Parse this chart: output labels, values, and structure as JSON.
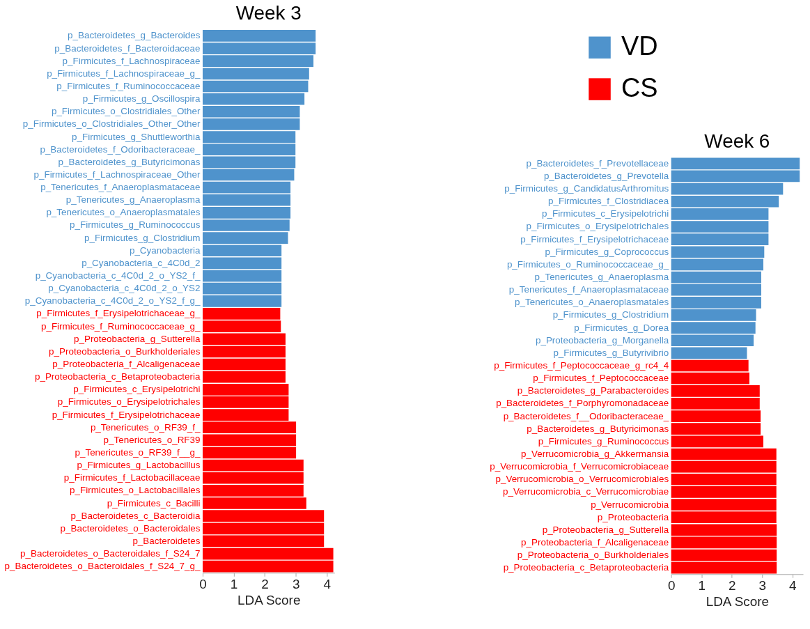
{
  "chart_data": [
    {
      "type": "bar",
      "orientation": "horizontal",
      "title": "Week 3",
      "xlabel": "LDA Score",
      "categories": [
        "p_Bacteroidetes_g_Bacteroides",
        "p_Bacteroidetes_f_Bacteroidaceae",
        "p_Firmicutes_f_Lachnospiraceae",
        "p_Firmicutes_f_Lachnospiraceae_g_",
        "p_Firmicutes_f_Ruminococcaceae",
        "p_Firmicutes_g_Oscillospira",
        "p_Firmicutes_o_Clostridiales_Other",
        "p_Firmicutes_o_Clostridiales_Other_Other",
        "p_Firmicutes_g_Shuttleworthia",
        "p_Bacteroidetes_f_Odoribacteraceae_",
        "p_Bacteroidetes_g_Butyricimonas",
        "p_Firmicutes_f_Lachnospiraceae_Other",
        "p_Tenericutes_f_Anaeroplasmataceae",
        "p_Tenericutes_g_Anaeroplasma",
        "p_Tenericutes_o_Anaeroplasmatales",
        "p_Firmicutes_g_Ruminococcus",
        "p_Firmicutes_g_Clostridium",
        "p_Cyanobacteria",
        "p_Cyanobacteria_c_4C0d_2",
        "p_Cyanobacteria_c_4C0d_2_o_YS2_f_",
        "p_Cyanobacteria_c_4C0d_2_o_YS2",
        "p_Cyanobacteria_c_4C0d_2_o_YS2_f_g_",
        "p_Firmicutes_f_Erysipelotrichaceae_g_",
        "p_Firmicutes_f_Ruminococcaceae_g_",
        "p_Proteobacteria_g_Sutterella",
        "p_Proteobacteria_o_Burkholderiales",
        "p_Proteobacteria_f_Alcaligenaceae",
        "p_Proteobacteria_c_Betaproteobacteria",
        "p_Firmicutes_c_Erysipelotrichi",
        "p_Firmicutes_o_Erysipelotrichales",
        "p_Firmicutes_f_Erysipelotrichaceae",
        "p_Tenericutes_o_RF39_f_",
        "p_Tenericutes_o_RF39",
        "p_Tenericutes_o_RF39_f__g_",
        "p_Firmicutes_g_Lactobacillus",
        "p_Firmicutes_f_Lactobacillaceae",
        "p_Firmicutes_o_Lactobacillales",
        "p_Firmicutes_c_Bacilli",
        "p_Bacteroidetes_c_Bacteroidia",
        "p_Bacteroidetes_o_Bacteroidales",
        "p_Bacteroidetes",
        "p_Bacteroidetes_o_Bacteroidales_f_S24_7",
        "p_Bacteroidetes_o_Bacteroidales_f_S24_7_g_"
      ],
      "series": [
        {
          "name": "VD",
          "color": "#4f93cc",
          "values": [
            3.64,
            3.64,
            3.57,
            3.43,
            3.4,
            3.28,
            3.13,
            3.13,
            2.99,
            2.99,
            2.99,
            2.95,
            2.83,
            2.83,
            2.83,
            2.8,
            2.75,
            2.54,
            2.54,
            2.54,
            2.54,
            2.54,
            null,
            null,
            null,
            null,
            null,
            null,
            null,
            null,
            null,
            null,
            null,
            null,
            null,
            null,
            null,
            null,
            null,
            null,
            null,
            null,
            null
          ]
        },
        {
          "name": "CS",
          "color": "#ff0000",
          "values": [
            null,
            null,
            null,
            null,
            null,
            null,
            null,
            null,
            null,
            null,
            null,
            null,
            null,
            null,
            null,
            null,
            null,
            null,
            null,
            null,
            null,
            null,
            2.5,
            2.52,
            2.67,
            2.67,
            2.67,
            2.67,
            2.77,
            2.77,
            2.77,
            3.01,
            3.01,
            3.01,
            3.25,
            3.25,
            3.25,
            3.34,
            3.91,
            3.91,
            3.91,
            4.21,
            4.21
          ]
        }
      ],
      "xlim": [
        0,
        4.25
      ],
      "xticks": [
        0,
        1,
        2,
        3,
        4
      ],
      "grid": false,
      "legend": "top right"
    },
    {
      "type": "bar",
      "orientation": "horizontal",
      "title": "Week 6",
      "xlabel": "LDA Score",
      "categories": [
        "p_Bacteroidetes_f_Prevotellaceae",
        "p_Bacteroidetes_g_Prevotella",
        "p_Firmicutes_g_CandidatusArthromitus",
        "p_Firmicutes_f_Clostridiacea",
        "p_Firmicutes_c_Erysipelotrichi",
        "p_Firmicutes_o_Erysipelotrichales",
        "p_Firmicutes_f_Erysipelotrichaceae",
        "p_Firmicutes_g_Coprococcus",
        "p_Firmicutes_o_Ruminococcaceae_g_",
        "p_Tenericutes_g_Anaeroplasma",
        "p_Tenericutes_f_Anaeroplasmataceae",
        "p_Tenericutes_o_Anaeroplasmatales",
        "p_Firmicutes_g_Clostridium",
        "p_Firmicutes_g_Dorea",
        "p_Proteobacteria_g_Morganella",
        "p_Firmicutes_g_Butyrivibrio",
        "p_Firmicutes_f_Peptococcaceae_g_rc4_4",
        "p_Firmicutes_f_Peptococcaceae",
        "p_Bacteroidetes_g_Parabacteroides",
        "p_Bacteroidetes_f_Porphyromonadaceae",
        "p_Bacteroidetes_f__Odoribacteraceae_",
        "p_Bacteroidetes_g_Butyricimonas",
        "p_Firmicutes_g_Ruminococcus",
        "p_Verrucomicrobia_g_Akkermansia",
        "p_Verrucomicrobia_f_Verrucomicrobiaceae",
        "p_Verrucomicrobia_o_Verrucomicrobiales",
        "p_Verrucomicrobia_c_Verrucomicrobiae",
        "p_Verrucomicrobia",
        "p_Proteobacteria",
        "p_Proteobacteria_g_Sutterella",
        "p_Proteobacteria_f_Alcaligenaceae",
        "p_Proteobacteria_o_Burkholderiales",
        "p_Proteobacteria_c_Betaproteobacteria"
      ],
      "series": [
        {
          "name": "VD",
          "color": "#4f93cc",
          "values": [
            4.24,
            4.24,
            3.69,
            3.55,
            3.21,
            3.21,
            3.21,
            3.07,
            3.04,
            2.97,
            2.97,
            2.97,
            2.8,
            2.78,
            2.72,
            2.5,
            null,
            null,
            null,
            null,
            null,
            null,
            null,
            null,
            null,
            null,
            null,
            null,
            null,
            null,
            null,
            null,
            null
          ]
        },
        {
          "name": "CS",
          "color": "#ff0000",
          "values": [
            null,
            null,
            null,
            null,
            null,
            null,
            null,
            null,
            null,
            null,
            null,
            null,
            null,
            null,
            null,
            null,
            2.55,
            2.58,
            2.92,
            2.92,
            2.95,
            2.95,
            3.04,
            3.47,
            3.47,
            3.47,
            3.47,
            3.47,
            3.47,
            3.48,
            3.48,
            3.48,
            3.48
          ]
        }
      ],
      "xlim": [
        0,
        4.35
      ],
      "xticks": [
        0,
        1,
        2,
        3,
        4
      ],
      "grid": false,
      "legend": "top"
    }
  ]
}
